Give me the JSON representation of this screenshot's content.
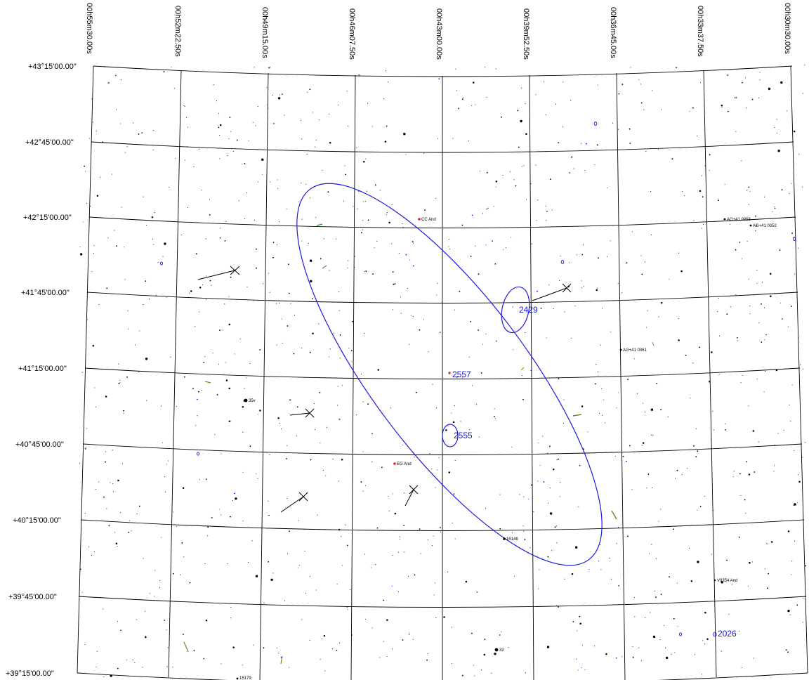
{
  "ra_labels": [
    "00h55m30.00s",
    "00h52m22.50s",
    "00h49m15.00s",
    "00h46m07.50s",
    "00h43m00.00s",
    "00h39m52.50s",
    "00h36m45.00s",
    "00h33m37.50s",
    "00h30m30.00s"
  ],
  "dec_labels": [
    "+43°15'00.00\"",
    "+42°45'00.00\"",
    "+42°15'00.00\"",
    "+41°45'00.00\"",
    "+41°15'00.00\"",
    "+40°45'00.00\"",
    "+40°15'00.00\"",
    "+39°45'00.00\"",
    "+39°15'00.00\""
  ],
  "galaxy_labels": {
    "m31": "",
    "g2429": "2429",
    "g2557": "2557",
    "g2555": "2555",
    "g2026": "2026"
  },
  "star_labels": {
    "cc_and": "CC And",
    "ag41_0053": "AG+41 0053",
    "ag41_0052": "AG+41 0052",
    "ag41_0061": "AG+41 0061",
    "v35": "35v",
    "eg_and": "EG And",
    "s15146": "15146",
    "v0354_and": "V0354 And",
    "s32": "32",
    "s15179": "15179"
  },
  "colors": {
    "grid": "#000000",
    "star": "#000000",
    "galaxy": "#1a1adb",
    "nebula": "#2a9a2a",
    "variable": "#e02020",
    "comet": "#6a8a20"
  }
}
